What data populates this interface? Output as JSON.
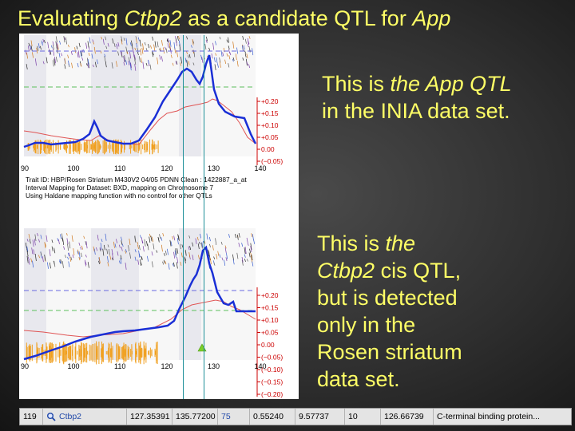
{
  "slide": {
    "title_prefix": "Evaluating ",
    "title_gene": "Ctbp2",
    "title_mid": " as a candidate QTL for ",
    "title_trait": "App"
  },
  "caption_top": {
    "line1_prefix": "This is ",
    "line1_em": "the App QTL",
    "line2": "in the INIA data set."
  },
  "caption_bottom": {
    "line1_prefix": "This is ",
    "line1_em": "the",
    "line2_em": "Ctbp2",
    "line2_rest": " cis QTL,",
    "line3": "but is detected",
    "line4": "only in the",
    "line5": "Rosen striatum",
    "line6": "data set."
  },
  "trait_info": {
    "line1": "Trait ID: HBP/Rosen Striatum M430V2 04/05 PDNN Clean : 1422887_a_at",
    "line2": "Interval Mapping for Dataset: BXD, mapping on Chromosome 7",
    "line3": "Using Haldane mapping function with no control for other QTLs"
  },
  "plot_top": {
    "x_ticks": [
      "90",
      "100",
      "110",
      "120",
      "130",
      "140"
    ],
    "y_right_ticks": [
      "+0.20",
      "+0.15",
      "+0.10",
      "+0.05",
      "0.00",
      "(−0.05)"
    ]
  },
  "plot_bottom": {
    "x_ticks": [
      "90",
      "100",
      "110",
      "120",
      "130",
      "140"
    ],
    "y_right_ticks": [
      "+0.20",
      "+0.15",
      "+0.10",
      "+0.05",
      "0.00",
      "(−0.05)",
      "(−0.10)",
      "(−0.15)",
      "(−0.20)"
    ]
  },
  "table_row": {
    "index": "119",
    "symbol": "Ctbp2",
    "start": "127.35391",
    "end": "135.77200",
    "n": "75",
    "mean": "0.55240",
    "max_lrs": "9.57737",
    "chr": "10",
    "mb": "126.66739",
    "description": "C-terminal binding protein..."
  }
}
